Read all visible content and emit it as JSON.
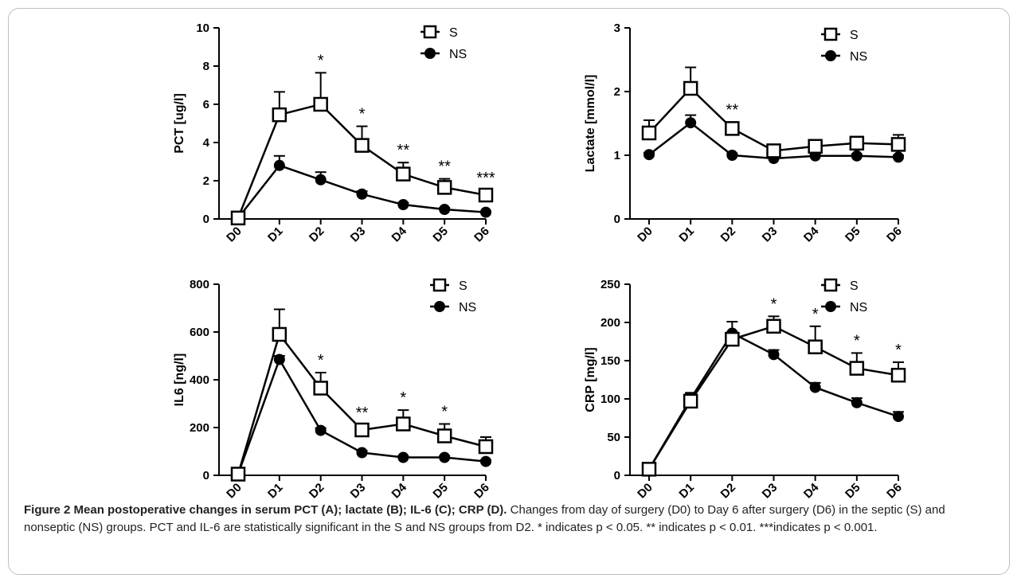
{
  "chart_data": [
    {
      "panel": "A",
      "type": "line",
      "categories": [
        "D0",
        "D1",
        "D2",
        "D3",
        "D4",
        "D5",
        "D6"
      ],
      "ylabel": "PCT [ug/l]",
      "ylim": [
        0,
        10
      ],
      "yticks": [
        0,
        2,
        4,
        6,
        8,
        10
      ],
      "series": [
        {
          "name": "S",
          "marker": "open-square",
          "values": [
            0.05,
            5.45,
            6.0,
            3.85,
            2.35,
            1.65,
            1.25
          ],
          "error": [
            0,
            1.2,
            1.65,
            1.0,
            0.6,
            0.45,
            0.25
          ]
        },
        {
          "name": "NS",
          "marker": "filled-circle",
          "values": [
            0.05,
            2.8,
            2.05,
            1.3,
            0.75,
            0.5,
            0.35
          ],
          "error": [
            0,
            0.5,
            0.4,
            0.15,
            0.1,
            0.08,
            0.05
          ]
        }
      ],
      "significance": [
        "",
        "",
        "*",
        "*",
        "**",
        "**",
        "***"
      ],
      "legend_position": "top-right"
    },
    {
      "panel": "B",
      "type": "line",
      "categories": [
        "D0",
        "D1",
        "D2",
        "D3",
        "D4",
        "D5",
        "D6"
      ],
      "ylabel": "Lactate [mmol/l]",
      "ylim": [
        0,
        3
      ],
      "yticks": [
        0,
        1,
        2,
        3
      ],
      "series": [
        {
          "name": "S",
          "marker": "open-square",
          "values": [
            1.35,
            2.05,
            1.42,
            1.07,
            1.14,
            1.19,
            1.17
          ],
          "error": [
            0.2,
            0.33,
            0.1,
            0.06,
            0.06,
            0.08,
            0.15
          ]
        },
        {
          "name": "NS",
          "marker": "filled-circle",
          "values": [
            1.01,
            1.51,
            1.0,
            0.95,
            0.99,
            0.99,
            0.97
          ],
          "error": [
            0.03,
            0.12,
            0.03,
            0.03,
            0.03,
            0.03,
            0.03
          ]
        }
      ],
      "significance": [
        "",
        "",
        "**",
        "",
        "",
        "",
        ""
      ],
      "legend_position": "top-right"
    },
    {
      "panel": "C",
      "type": "line",
      "categories": [
        "D0",
        "D1",
        "D2",
        "D3",
        "D4",
        "D5",
        "D6"
      ],
      "ylabel": "IL6 [ng/l]",
      "ylim": [
        0,
        800
      ],
      "yticks": [
        0,
        200,
        400,
        600,
        800
      ],
      "series": [
        {
          "name": "S",
          "marker": "open-square",
          "values": [
            5,
            590,
            365,
            190,
            215,
            165,
            120
          ],
          "error": [
            0,
            105,
            65,
            20,
            58,
            50,
            40
          ]
        },
        {
          "name": "NS",
          "marker": "filled-circle",
          "values": [
            5,
            485,
            188,
            95,
            75,
            75,
            58
          ],
          "error": [
            0,
            15,
            10,
            8,
            6,
            6,
            6
          ]
        }
      ],
      "significance": [
        "",
        "",
        "*",
        "**",
        "*",
        "*",
        ""
      ],
      "legend_position": "top-right"
    },
    {
      "panel": "D",
      "type": "line",
      "categories": [
        "D0",
        "D1",
        "D2",
        "D3",
        "D4",
        "D5",
        "D6"
      ],
      "ylabel": "CRP [mg/l]",
      "ylim": [
        0,
        250
      ],
      "yticks": [
        0,
        50,
        100,
        150,
        200,
        250
      ],
      "series": [
        {
          "name": "S",
          "marker": "open-square",
          "values": [
            8,
            97,
            178,
            195,
            168,
            140,
            131
          ],
          "error": [
            0,
            10,
            10,
            13,
            27,
            20,
            17
          ]
        },
        {
          "name": "NS",
          "marker": "filled-circle",
          "values": [
            8,
            100,
            186,
            158,
            115,
            95,
            77
          ],
          "error": [
            0,
            8,
            15,
            6,
            6,
            6,
            6
          ]
        }
      ],
      "significance": [
        "",
        "",
        "",
        "*",
        "*",
        "*",
        "*"
      ],
      "legend_position": "top-right"
    }
  ],
  "caption": {
    "title": "Figure 2 Mean postoperative changes in serum PCT (A); lactate (B); IL-6 (C); CRP (D).",
    "text": "Changes from day of surgery (D0) to Day 6 after surgery (D6) in the septic (S) and nonseptic (NS) groups. PCT and IL-6 are statistically significant in the S and NS groups from D2. * indicates p < 0.05. ** indicates p < 0.01. ***indicates p < 0.001."
  }
}
